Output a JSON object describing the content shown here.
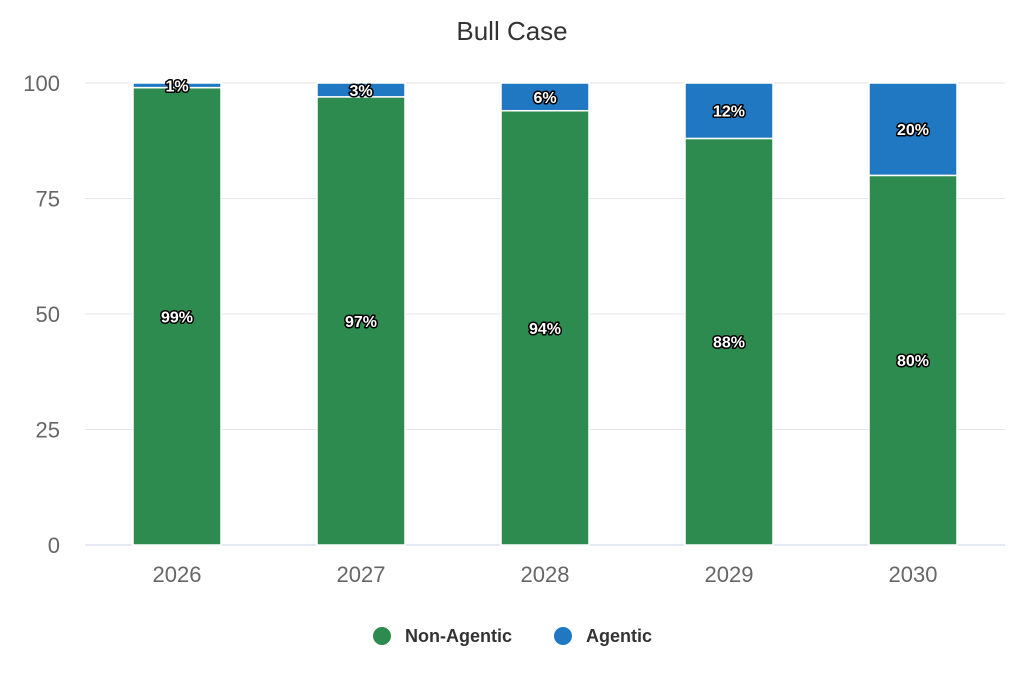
{
  "chart_data": {
    "type": "bar",
    "stacked": true,
    "title": "Bull Case",
    "xlabel": "",
    "ylabel": "",
    "categories": [
      "2026",
      "2027",
      "2028",
      "2029",
      "2030"
    ],
    "ylim": [
      0,
      100
    ],
    "yticks": [
      "0",
      "25",
      "50",
      "75",
      "100"
    ],
    "grid": true,
    "legend_position": "bottom",
    "series": [
      {
        "name": "Non-Agentic",
        "color": "#2e8b50",
        "values": [
          99,
          97,
          94,
          88,
          80
        ],
        "labels": [
          "99%",
          "97%",
          "94%",
          "88%",
          "80%"
        ]
      },
      {
        "name": "Agentic",
        "color": "#1f78c1",
        "values": [
          1,
          3,
          6,
          12,
          20
        ],
        "labels": [
          "1%",
          "3%",
          "6%",
          "12%",
          "20%"
        ]
      }
    ]
  }
}
